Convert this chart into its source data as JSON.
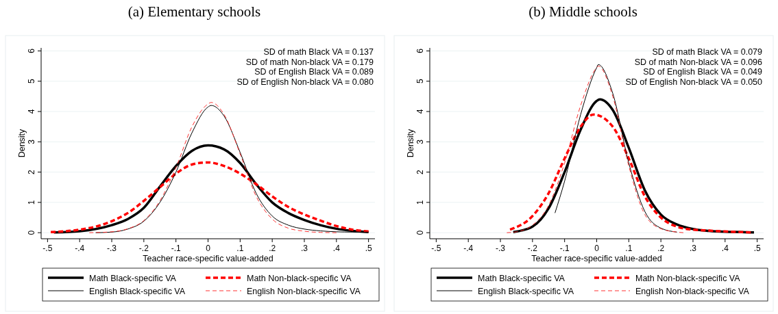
{
  "chart_data": [
    {
      "type": "line",
      "title": "(a) Elementary schools",
      "xlabel": "Teacher race-specific value-added",
      "ylabel": "Density",
      "xlim": [
        -0.52,
        0.52
      ],
      "xticks": [
        {
          "value": -0.5,
          "label": "-.5"
        },
        {
          "value": -0.4,
          "label": "-.4"
        },
        {
          "value": -0.3,
          "label": "-.3"
        },
        {
          "value": -0.2,
          "label": "-.2"
        },
        {
          "value": -0.1,
          "label": "-.1"
        },
        0,
        {
          "value": 0.1,
          "label": ".1"
        },
        {
          "value": 0.2,
          "label": ".2"
        },
        {
          "value": 0.3,
          "label": ".3"
        },
        {
          "value": 0.4,
          "label": ".4"
        },
        {
          "value": 0.5,
          "label": ".5"
        }
      ],
      "ylim": [
        -0.2,
        6.1
      ],
      "yticks": [
        0,
        1,
        2,
        3,
        4,
        5,
        6
      ],
      "grid": "y",
      "legend": "bottom",
      "marker": "none",
      "annotations": [
        "SD of math Black VA = 0.137",
        "SD of math Non-black VA = 0.179",
        "SD of English Black VA = 0.089",
        "SD of English Non-black VA = 0.080"
      ],
      "series": [
        {
          "name": "Math Black-specific VA",
          "color": "#000000",
          "line_style": "solid",
          "x": [
            -0.48,
            -0.4,
            -0.3,
            -0.25,
            -0.2,
            -0.15,
            -0.1,
            -0.05,
            0,
            0.05,
            0.1,
            0.15,
            0.2,
            0.25,
            0.3,
            0.35,
            0.4,
            0.45,
            0.5
          ],
          "values": [
            0.01,
            0.05,
            0.25,
            0.45,
            0.82,
            1.52,
            2.2,
            2.7,
            2.88,
            2.75,
            2.3,
            1.6,
            1.0,
            0.65,
            0.42,
            0.25,
            0.13,
            0.06,
            0.02
          ]
        },
        {
          "name": "Math Non-black-specific VA",
          "color": "#ff0000",
          "line_style": "dashed",
          "x": [
            -0.49,
            -0.4,
            -0.35,
            -0.3,
            -0.25,
            -0.2,
            -0.15,
            -0.1,
            -0.05,
            0,
            0.05,
            0.1,
            0.15,
            0.2,
            0.25,
            0.3,
            0.35,
            0.4,
            0.45,
            0.5
          ],
          "values": [
            0.02,
            0.1,
            0.2,
            0.38,
            0.65,
            1.05,
            1.5,
            1.95,
            2.25,
            2.32,
            2.2,
            1.95,
            1.6,
            1.2,
            0.85,
            0.6,
            0.4,
            0.22,
            0.1,
            0.04
          ]
        },
        {
          "name": "English Black-specific VA",
          "color": "#000000",
          "line_style": "solid",
          "x": [
            -0.35,
            -0.3,
            -0.25,
            -0.2,
            -0.15,
            -0.1,
            -0.05,
            0,
            0.01,
            0.05,
            0.1,
            0.15,
            0.2,
            0.25,
            0.3,
            0.35,
            0.4,
            0.45,
            0.5
          ],
          "values": [
            0,
            0.02,
            0.12,
            0.38,
            1.0,
            2.0,
            3.3,
            4.15,
            4.2,
            3.85,
            2.65,
            1.3,
            0.55,
            0.25,
            0.12,
            0.06,
            0.03,
            0.02,
            0.02
          ]
        },
        {
          "name": "English Non-black-specific VA",
          "color": "#ff3030",
          "line_style": "dashed",
          "x": [
            -0.37,
            -0.3,
            -0.25,
            -0.2,
            -0.15,
            -0.1,
            -0.05,
            0,
            0.01,
            0.05,
            0.1,
            0.15,
            0.2,
            0.25,
            0.3,
            0.35,
            0.4
          ],
          "values": [
            0,
            0.03,
            0.13,
            0.4,
            1.05,
            2.15,
            3.5,
            4.25,
            4.3,
            3.9,
            2.6,
            1.2,
            0.45,
            0.15,
            0.05,
            0.01,
            0
          ]
        }
      ]
    },
    {
      "type": "line",
      "title": "(b) Middle schools",
      "xlabel": "Teacher race-specific value-added",
      "ylabel": "Density",
      "xlim": [
        -0.52,
        0.52
      ],
      "xticks": [
        {
          "value": -0.5,
          "label": "-.5"
        },
        {
          "value": -0.4,
          "label": "-.4"
        },
        {
          "value": -0.3,
          "label": "-.3"
        },
        {
          "value": -0.2,
          "label": "-.2"
        },
        {
          "value": -0.1,
          "label": "-.1"
        },
        0,
        {
          "value": 0.1,
          "label": ".1"
        },
        {
          "value": 0.2,
          "label": ".2"
        },
        {
          "value": 0.3,
          "label": ".3"
        },
        {
          "value": 0.4,
          "label": ".4"
        },
        {
          "value": 0.5,
          "label": ".5"
        }
      ],
      "ylim": [
        -0.2,
        6.1
      ],
      "yticks": [
        0,
        1,
        2,
        3,
        4,
        5,
        6
      ],
      "grid": "y",
      "legend": "bottom",
      "marker": "none",
      "annotations": [
        "SD of math Black VA = 0.079",
        "SD of math Non-black VA = 0.096",
        "SD of English Black VA = 0.049",
        "SD of English Non-black VA = 0.050"
      ],
      "series": [
        {
          "name": "Math Black-specific VA",
          "color": "#000000",
          "line_style": "solid",
          "x": [
            -0.26,
            -0.2,
            -0.15,
            -0.1,
            -0.05,
            0,
            0.01,
            0.05,
            0.1,
            0.15,
            0.2,
            0.25,
            0.3,
            0.35,
            0.4,
            0.45,
            0.49
          ],
          "values": [
            0.02,
            0.2,
            0.8,
            2.0,
            3.4,
            4.35,
            4.4,
            4.05,
            2.8,
            1.4,
            0.6,
            0.27,
            0.12,
            0.06,
            0.03,
            0.02,
            0.01
          ]
        },
        {
          "name": "Math Non-black-specific VA",
          "color": "#ff0000",
          "line_style": "dashed",
          "x": [
            -0.27,
            -0.2,
            -0.15,
            -0.1,
            -0.05,
            -0.01,
            0.05,
            0.1,
            0.15,
            0.2,
            0.25,
            0.3,
            0.35,
            0.4,
            0.45,
            0.48
          ],
          "values": [
            0.1,
            0.55,
            1.3,
            2.45,
            3.5,
            3.9,
            3.5,
            2.45,
            1.2,
            0.5,
            0.2,
            0.1,
            0.07,
            0.04,
            0.02,
            0.01
          ]
        },
        {
          "name": "English Black-specific VA",
          "color": "#000000",
          "line_style": "solid",
          "x": [
            -0.13,
            -0.1,
            -0.05,
            0,
            0.005,
            0.05,
            0.1,
            0.15,
            0.2,
            0.25
          ],
          "values": [
            0.65,
            1.7,
            3.9,
            5.45,
            5.55,
            4.6,
            2.3,
            0.7,
            0.15,
            0.02
          ]
        },
        {
          "name": "English Non-black-specific VA",
          "color": "#ff3030",
          "line_style": "dashed",
          "x": [
            -0.28,
            -0.25,
            -0.2,
            -0.15,
            -0.1,
            -0.05,
            0,
            0.005,
            0.05,
            0.1,
            0.15,
            0.2,
            0.25,
            0.27
          ],
          "values": [
            0,
            0.03,
            0.25,
            0.9,
            2.3,
            4.2,
            5.45,
            5.5,
            4.5,
            2.2,
            0.6,
            0.13,
            0.02,
            0
          ]
        }
      ]
    }
  ]
}
